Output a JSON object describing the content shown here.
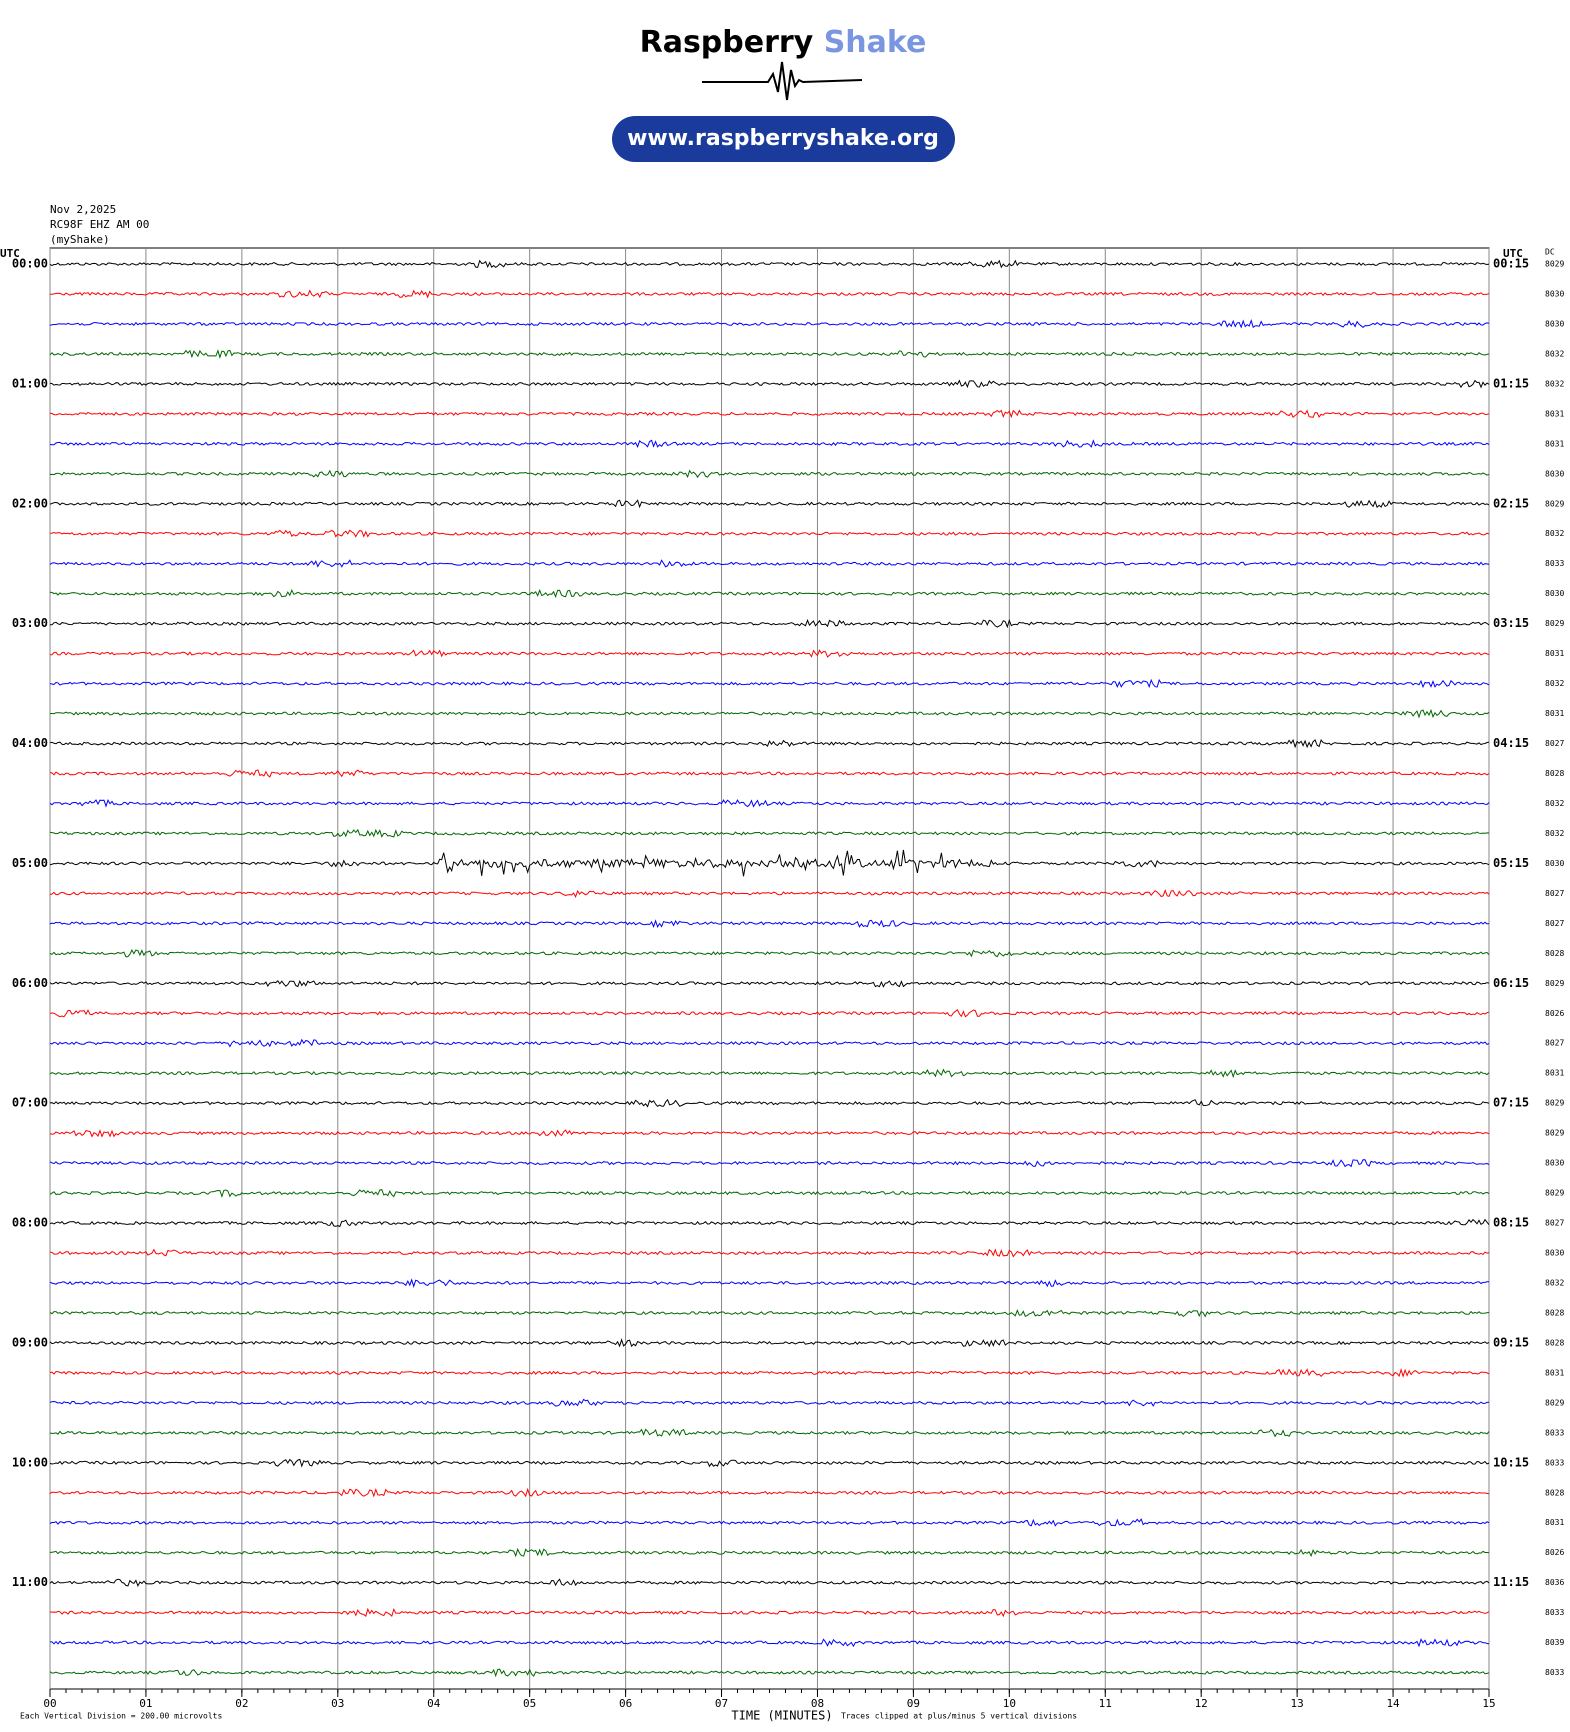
{
  "logo": {
    "name_dark": "Raspberry",
    "name_light": "Shake",
    "url": "www.raspberryshake.org"
  },
  "header": {
    "date": "Nov 2,2025",
    "station": "RC98F EHZ AM 00",
    "network": "(myShake)"
  },
  "chart_data": {
    "type": "helicorder",
    "left_axis_title": "UTC",
    "right_axis_title": "UTC",
    "dc_title": "DC",
    "colors": [
      "#000000",
      "#ff0000",
      "#0000ff",
      "#006600"
    ],
    "left_labels": [
      "00:00",
      "01:00",
      "02:00",
      "03:00",
      "04:00",
      "05:00",
      "06:00",
      "07:00",
      "08:00",
      "09:00",
      "10:00",
      "11:00"
    ],
    "right_labels": [
      "00:15",
      "01:15",
      "02:15",
      "03:15",
      "04:15",
      "05:15",
      "06:15",
      "07:15",
      "08:15",
      "09:15",
      "10:15",
      "11:15"
    ],
    "dc_values": [
      8029,
      8030,
      8030,
      8032,
      8032,
      8031,
      8031,
      8030,
      8029,
      8032,
      8033,
      8030,
      8029,
      8031,
      8032,
      8031,
      8027,
      8028,
      8032,
      8032,
      8030,
      8027,
      8027,
      8028,
      8029,
      8026,
      8027,
      8031,
      8029,
      8029,
      8030,
      8029,
      8027,
      8030,
      8032,
      8028,
      8028,
      8031,
      8029,
      8033,
      8033,
      8028,
      8031,
      8026,
      8036,
      8033,
      8039,
      8033
    ],
    "xlim": [
      0,
      15
    ],
    "xticks": [
      {
        "value": 0,
        "label": "00"
      },
      {
        "value": 1,
        "label": "01"
      },
      {
        "value": 2,
        "label": "02"
      },
      {
        "value": 3,
        "label": "03"
      },
      {
        "value": 4,
        "label": "04"
      },
      {
        "value": 5,
        "label": "05"
      },
      {
        "value": 6,
        "label": "06"
      },
      {
        "value": 7,
        "label": "07"
      },
      {
        "value": 8,
        "label": "08"
      },
      {
        "value": 9,
        "label": "09"
      },
      10,
      11,
      12,
      13,
      14,
      15
    ],
    "xlabel": "TIME (MINUTES)",
    "footnote_left": "Each Vertical Division =  200.00 microvolts",
    "footnote_right": "Traces clipped at plus/minus 5 vertical divisions"
  }
}
